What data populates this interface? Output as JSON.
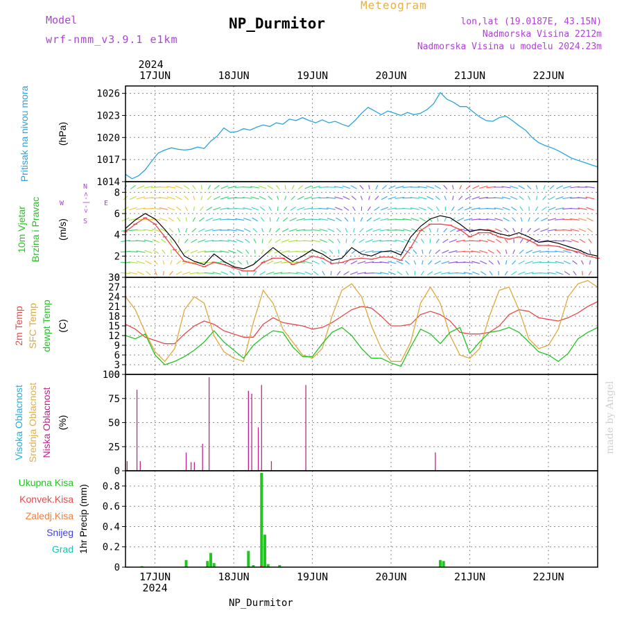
{
  "header": {
    "model_label": "Model",
    "model_name": "wrf-nmm_v3.9.1 e1km",
    "meteogram_label": "Meteogram",
    "station": "NP_Durmitor",
    "coordinates": "lon,lat (19.0187E, 43.15N)",
    "elevation": "Nadmorska Visina 2212m",
    "model_elevation": "Nadmorska Visina u modelu 2024.23m"
  },
  "footer": {
    "station": "NP_Durmitor",
    "credit": "made by Angel"
  },
  "colors": {
    "pressure": "#29a3e0",
    "wind_speed": "#000000",
    "temp_2m": "#e84848",
    "temp_sfc": "#e0a83c",
    "dewpoint": "#22c422",
    "cloud_high": "#1fb0e0",
    "cloud_mid": "#e0b040",
    "cloud_low": "#c0208c",
    "precip_total": "#22c422",
    "precip_conv": "#e84848",
    "precip_frozen": "#f08040",
    "snow": "#4040e0",
    "graupel": "#20c0b0"
  },
  "chart_data": {
    "type": "line",
    "x_axis": {
      "year": "2024",
      "ticks": [
        "17JUN",
        "18JUN",
        "19JUN",
        "20JUN",
        "21JUN",
        "22JUN"
      ],
      "tick_hours": [
        24,
        48,
        72,
        96,
        120,
        144
      ],
      "range_hours": [
        15,
        159
      ],
      "origin_date": "16JUN 2024 00UTC"
    },
    "panels": [
      {
        "id": "pressure",
        "label_lines": [
          "Pritisak na nivou mora"
        ],
        "unit": "(hPa)",
        "ylim": [
          1014,
          1027
        ],
        "yticks": [
          1014,
          1017,
          1020,
          1023,
          1026
        ],
        "series": [
          {
            "color": "#29a3e0",
            "x": [
              15,
              17,
              19,
              21,
              23,
              25,
              27,
              29,
              31,
              33,
              35,
              37,
              39,
              41,
              43,
              45,
              47,
              49,
              51,
              53,
              55,
              57,
              59,
              61,
              63,
              65,
              67,
              69,
              71,
              73,
              75,
              77,
              79,
              81,
              83,
              85,
              87,
              89,
              91,
              93,
              95,
              97,
              99,
              101,
              103,
              105,
              107,
              109,
              111,
              113,
              115,
              117,
              119,
              121,
              123,
              125,
              127,
              129,
              131,
              133,
              135,
              137,
              139,
              141,
              143,
              145,
              147,
              149,
              151,
              153,
              155,
              157,
              159
            ],
            "values": [
              1015.0,
              1014.4,
              1014.8,
              1015.6,
              1016.8,
              1017.9,
              1018.3,
              1018.6,
              1018.4,
              1018.3,
              1018.4,
              1018.7,
              1018.5,
              1019.5,
              1020.2,
              1021.3,
              1020.7,
              1020.8,
              1021.2,
              1021.0,
              1021.4,
              1021.7,
              1021.5,
              1022.0,
              1021.8,
              1022.5,
              1022.3,
              1022.7,
              1022.3,
              1022.0,
              1022.4,
              1022.0,
              1022.2,
              1021.8,
              1021.5,
              1022.3,
              1023.3,
              1024.1,
              1023.6,
              1023.1,
              1023.6,
              1023.3,
              1023.0,
              1023.4,
              1023.1,
              1023.3,
              1023.8,
              1024.6,
              1026.1,
              1025.2,
              1024.8,
              1024.2,
              1024.2,
              1023.5,
              1022.8,
              1022.3,
              1022.2,
              1022.7,
              1022.9,
              1022.3,
              1021.6,
              1021.0,
              1020.0,
              1019.3,
              1018.9,
              1018.6,
              1018.2,
              1017.7,
              1017.2,
              1016.9,
              1016.6,
              1016.3,
              1016.0
            ]
          }
        ]
      },
      {
        "id": "wind",
        "label_lines": [
          "10m Vjetar",
          "Brzina i Pravac"
        ],
        "unit": "(m/s)",
        "compass": [
          "N",
          "<-|->",
          "E",
          "W",
          "S"
        ],
        "ylim": [
          0,
          9
        ],
        "yticks": [
          0,
          2,
          4,
          6,
          8
        ],
        "series": [
          {
            "name": "speed",
            "color": "#000000",
            "x": [
              15,
              18,
              21,
              24,
              27,
              30,
              33,
              36,
              39,
              42,
              45,
              48,
              51,
              54,
              57,
              60,
              63,
              66,
              69,
              72,
              75,
              78,
              81,
              84,
              87,
              90,
              93,
              96,
              99,
              102,
              105,
              108,
              111,
              114,
              117,
              120,
              123,
              126,
              129,
              132,
              135,
              138,
              141,
              144,
              147,
              150,
              153,
              156,
              159
            ],
            "values": [
              4.6,
              5.4,
              6.0,
              5.5,
              4.5,
              3.4,
              2.0,
              1.5,
              1.2,
              2.2,
              1.5,
              1.0,
              0.8,
              1.2,
              2.0,
              2.8,
              2.1,
              1.5,
              2.0,
              2.6,
              2.2,
              1.6,
              1.8,
              2.8,
              2.2,
              2.0,
              2.4,
              2.5,
              2.1,
              3.8,
              4.8,
              5.5,
              5.8,
              5.6,
              5.0,
              4.3,
              4.5,
              4.4,
              4.1,
              3.9,
              4.2,
              3.8,
              3.3,
              3.4,
              3.2,
              2.9,
              2.6,
              2.2,
              2.0
            ]
          },
          {
            "name": "gust-marks",
            "color": "#e84848",
            "x": [
              15,
              18,
              21,
              24,
              27,
              30,
              33,
              36,
              39,
              42,
              45,
              48,
              51,
              54,
              57,
              60,
              63,
              66,
              69,
              72,
              75,
              78,
              81,
              84,
              87,
              90,
              93,
              96,
              99,
              102,
              105,
              108,
              111,
              114,
              117,
              120,
              123,
              126,
              129,
              132,
              135,
              138,
              141,
              144,
              147,
              150,
              153,
              156,
              159
            ],
            "values": [
              4.3,
              5.0,
              5.6,
              5.0,
              3.8,
              2.6,
              1.5,
              1.3,
              1.0,
              1.4,
              1.2,
              0.9,
              0.6,
              0.6,
              1.4,
              1.8,
              1.8,
              1.2,
              1.5,
              2.0,
              1.8,
              1.3,
              1.4,
              1.7,
              1.8,
              1.7,
              1.9,
              1.9,
              1.6,
              2.8,
              4.4,
              5.0,
              5.0,
              4.9,
              4.5,
              3.8,
              4.2,
              4.2,
              3.8,
              3.6,
              3.8,
              3.5,
              3.0,
              3.0,
              2.9,
              2.6,
              2.4,
              2.0,
              1.8
            ]
          }
        ]
      },
      {
        "id": "temperature",
        "label_lines": [
          "2m Temp",
          "SFC Temp",
          "dewpt Temp"
        ],
        "unit": "(C)",
        "ylim": [
          0,
          30
        ],
        "yticks": [
          0,
          3,
          6,
          9,
          12,
          15,
          18,
          21,
          24,
          27,
          30
        ],
        "series": [
          {
            "name": "2m Temp",
            "color": "#e84848",
            "x": [
              15,
              18,
              21,
              24,
              27,
              30,
              33,
              36,
              39,
              42,
              45,
              48,
              51,
              54,
              57,
              60,
              63,
              66,
              69,
              72,
              75,
              78,
              81,
              84,
              87,
              90,
              93,
              96,
              99,
              102,
              105,
              108,
              111,
              114,
              117,
              120,
              123,
              126,
              129,
              132,
              135,
              138,
              141,
              144,
              147,
              150,
              153,
              156,
              159
            ],
            "values": [
              15.5,
              14.0,
              11.5,
              10.5,
              9.5,
              9.5,
              12.5,
              15.0,
              16.5,
              15.5,
              13.5,
              12.5,
              11.5,
              11.5,
              15.5,
              17.5,
              16.0,
              15.5,
              15.0,
              14.0,
              14.5,
              16.0,
              18.0,
              20.0,
              21.0,
              20.5,
              18.0,
              15.0,
              15.0,
              15.5,
              18.5,
              19.5,
              18.5,
              16.5,
              13.0,
              12.5,
              12.5,
              13.0,
              15.0,
              18.5,
              20.0,
              19.5,
              17.5,
              17.0,
              16.5,
              17.5,
              19.0,
              21.0,
              22.5
            ]
          },
          {
            "name": "SFC Temp",
            "color": "#e0a83c",
            "x": [
              15,
              18,
              21,
              24,
              27,
              30,
              33,
              36,
              39,
              42,
              45,
              48,
              51,
              54,
              57,
              60,
              63,
              66,
              69,
              72,
              75,
              78,
              81,
              84,
              87,
              90,
              93,
              96,
              99,
              102,
              105,
              108,
              111,
              114,
              117,
              120,
              123,
              126,
              129,
              132,
              135,
              138,
              141,
              144,
              147,
              150,
              153,
              156,
              159
            ],
            "values": [
              24.0,
              20.0,
              13.0,
              7.0,
              4.0,
              8.0,
              20.0,
              24.0,
              22.0,
              12.0,
              7.0,
              5.0,
              4.0,
              16.0,
              26.0,
              22.0,
              14.0,
              10.0,
              6.0,
              5.0,
              8.0,
              18.0,
              26.0,
              28.0,
              24.0,
              15.0,
              8.0,
              4.0,
              4.0,
              10.0,
              22.0,
              27.0,
              22.0,
              12.0,
              6.0,
              5.0,
              8.0,
              18.0,
              26.0,
              27.0,
              20.0,
              11.0,
              8.0,
              9.0,
              14.0,
              24.0,
              28.0,
              29.0,
              27.0
            ]
          },
          {
            "name": "dewpt Temp",
            "color": "#22c422",
            "x": [
              15,
              18,
              21,
              24,
              27,
              30,
              33,
              36,
              39,
              42,
              45,
              48,
              51,
              54,
              57,
              60,
              63,
              66,
              69,
              72,
              75,
              78,
              81,
              84,
              87,
              90,
              93,
              96,
              99,
              102,
              105,
              108,
              111,
              114,
              117,
              120,
              123,
              126,
              129,
              132,
              135,
              138,
              141,
              144,
              147,
              150,
              153,
              156,
              159
            ],
            "values": [
              12.0,
              11.0,
              12.5,
              6.0,
              3.0,
              4.0,
              5.5,
              7.5,
              10.0,
              13.5,
              10.0,
              7.5,
              5.0,
              9.0,
              11.5,
              13.5,
              13.0,
              8.5,
              5.5,
              5.5,
              9.5,
              13.0,
              14.5,
              12.0,
              8.0,
              5.0,
              5.0,
              3.5,
              2.5,
              8.5,
              14.0,
              12.5,
              9.5,
              13.0,
              14.5,
              6.5,
              10.0,
              13.0,
              13.5,
              14.5,
              13.0,
              10.0,
              7.0,
              6.0,
              4.0,
              6.5,
              11.0,
              13.0,
              14.5
            ]
          }
        ]
      },
      {
        "id": "cloud",
        "label_lines": [
          "Visoka Oblacnost",
          "Srednja Oblacnost",
          "Niska Oblacnost"
        ],
        "unit": "(%)",
        "ylim": [
          0,
          100
        ],
        "yticks": [
          0,
          25,
          50,
          75,
          100
        ],
        "bars": [
          {
            "name": "Niska Oblacnost",
            "color": "#c0208c",
            "x": [
              15.5,
              18.5,
              19.5,
              33.5,
              35.0,
              36.0,
              38.5,
              40.5,
              52.5,
              53.5,
              55.5,
              56.5,
              59.5,
              70.0
            ],
            "values": [
              10,
              84,
              10,
              19,
              9,
              9,
              28,
              97,
              83,
              80,
              45,
              89,
              10,
              89
            ]
          },
          {
            "name": "Niska Oblacnost",
            "color": "#c0208c",
            "x": [
              109.5
            ],
            "values": [
              19
            ]
          }
        ]
      },
      {
        "id": "precip",
        "label_lines": [
          "Ukupna Kisa",
          "Konvek.Kisa",
          "Zaledj.Kisa",
          "Snijeg",
          "Grad"
        ],
        "unit": "1hr Precip (mm)",
        "ylim": [
          0,
          0.95
        ],
        "yticks": [
          0,
          0.2,
          0.4,
          0.6,
          0.8
        ],
        "bars": [
          {
            "name": "Ukupna Kisa",
            "color": "#22c422",
            "x": [
              15.5,
              20.0,
              33.5,
              40.0,
              41.0,
              42.0,
              52.5,
              54.0,
              56.5,
              57.5,
              58.5,
              62.0,
              111.0,
              112.0
            ],
            "values": [
              0.005,
              0.01,
              0.07,
              0.06,
              0.14,
              0.04,
              0.16,
              0.02,
              0.93,
              0.32,
              0.03,
              0.02,
              0.07,
              0.06
            ]
          },
          {
            "name": "Konvek.Kisa",
            "color": "#e84848",
            "x": [
              56.5
            ],
            "values": [
              0.02
            ]
          }
        ]
      }
    ]
  }
}
